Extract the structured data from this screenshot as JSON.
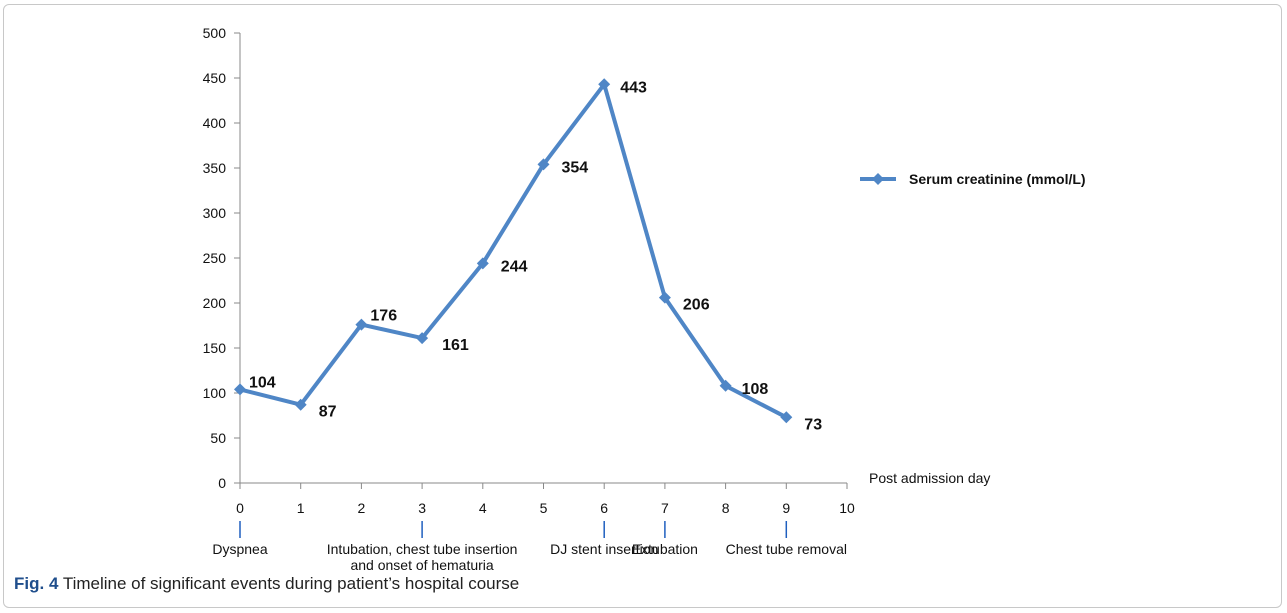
{
  "chart_data": {
    "type": "line",
    "x": [
      0,
      1,
      2,
      3,
      4,
      5,
      6,
      7,
      8,
      9
    ],
    "series": [
      {
        "name": "Serum creatinine (mmol/L)",
        "values": [
          104,
          87,
          176,
          161,
          244,
          354,
          443,
          206,
          108,
          73
        ]
      }
    ],
    "data_labels": [
      "104",
      "87",
      "176",
      "161",
      "244",
      "354",
      "443",
      "206",
      "108",
      "73"
    ],
    "xlabel": "Post admission day",
    "ylabel": "",
    "xlim": [
      0,
      10
    ],
    "ylim": [
      0,
      500
    ],
    "x_ticks": [
      "0",
      "1",
      "2",
      "3",
      "4",
      "5",
      "6",
      "7",
      "8",
      "9",
      "10"
    ],
    "y_ticks": [
      "0",
      "50",
      "100",
      "150",
      "200",
      "250",
      "300",
      "350",
      "400",
      "450",
      "500"
    ],
    "grid": false,
    "legend_position": "right",
    "series_color": "#4f86c6",
    "events": [
      {
        "day": 0,
        "lines": [
          "Dyspnea"
        ]
      },
      {
        "day": 3,
        "lines": [
          "Intubation, chest tube insertion",
          "and onset of hematuria"
        ]
      },
      {
        "day": 6,
        "lines": [
          "DJ stent insertion"
        ]
      },
      {
        "day": 7,
        "lines": [
          "Extubation"
        ]
      },
      {
        "day": 9,
        "lines": [
          "Chest tube removal"
        ]
      }
    ],
    "event_marker_color": "#1f5fbf"
  },
  "caption": {
    "label": "Fig. 4",
    "text": " Timeline of significant events during patient’s hospital course"
  }
}
